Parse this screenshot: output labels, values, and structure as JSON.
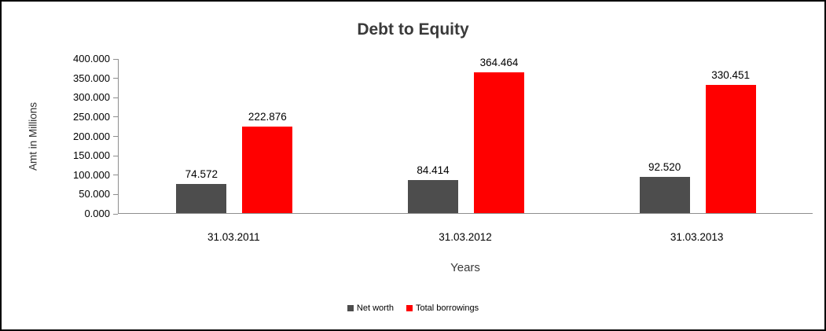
{
  "chart_data": {
    "type": "bar",
    "title": "Debt to Equity",
    "xlabel": "Years",
    "ylabel": "Amt in Millions",
    "categories": [
      "31.03.2011",
      "31.03.2012",
      "31.03.2013"
    ],
    "series": [
      {
        "name": "Net worth",
        "color": "#4d4d4d",
        "values": [
          74.572,
          84.414,
          92.52
        ],
        "labels": [
          "74.572",
          "84.414",
          "92.520"
        ]
      },
      {
        "name": "Total borrowings",
        "color": "#ff0000",
        "values": [
          222.876,
          364.464,
          330.451
        ],
        "labels": [
          "222.876",
          "364.464",
          "330.451"
        ]
      }
    ],
    "ylim": [
      0,
      400
    ],
    "ytick_step": 50,
    "ytick_labels": [
      "400.000",
      "350.000",
      "300.000",
      "250.000",
      "200.000",
      "150.000",
      "100.000",
      "50.000",
      "0.000"
    ],
    "grid": false,
    "legend_position": "bottom"
  }
}
